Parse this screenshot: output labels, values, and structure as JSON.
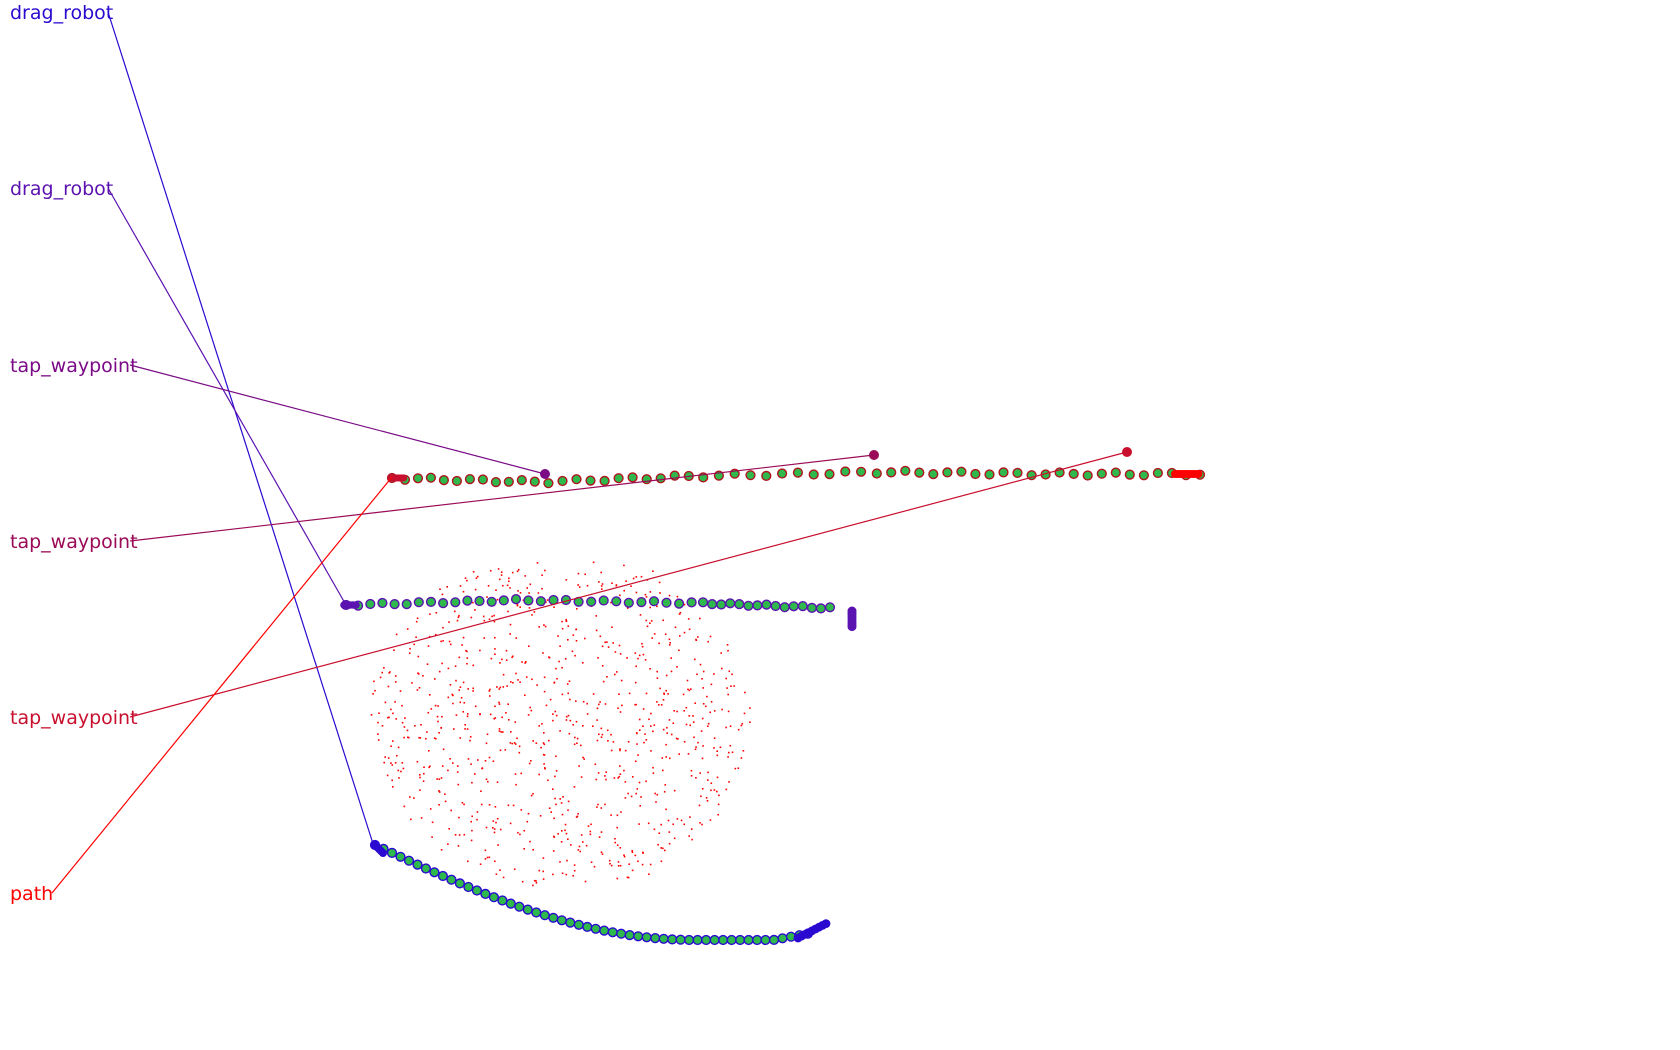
{
  "colors": {
    "drag_robot_1": "#2a0ad0",
    "drag_robot_2": "#5a12b0",
    "tap_waypoint_1": "#7a0a86",
    "tap_waypoint_2": "#9a0a56",
    "tap_waypoint_3": "#c8102e",
    "path": "#ff0000",
    "marker_fill": "#2fb84c",
    "marker_outline": "#10105a",
    "scatter": "#ff0000"
  },
  "labels": [
    {
      "text": "drag_robot",
      "color_key": "drag_robot_1"
    },
    {
      "text": "drag_robot",
      "color_key": "drag_robot_2"
    },
    {
      "text": "tap_waypoint",
      "color_key": "tap_waypoint_1"
    },
    {
      "text": "tap_waypoint",
      "color_key": "tap_waypoint_2"
    },
    {
      "text": "tap_waypoint",
      "color_key": "tap_waypoint_3"
    },
    {
      "text": "path",
      "color_key": "path"
    }
  ]
}
